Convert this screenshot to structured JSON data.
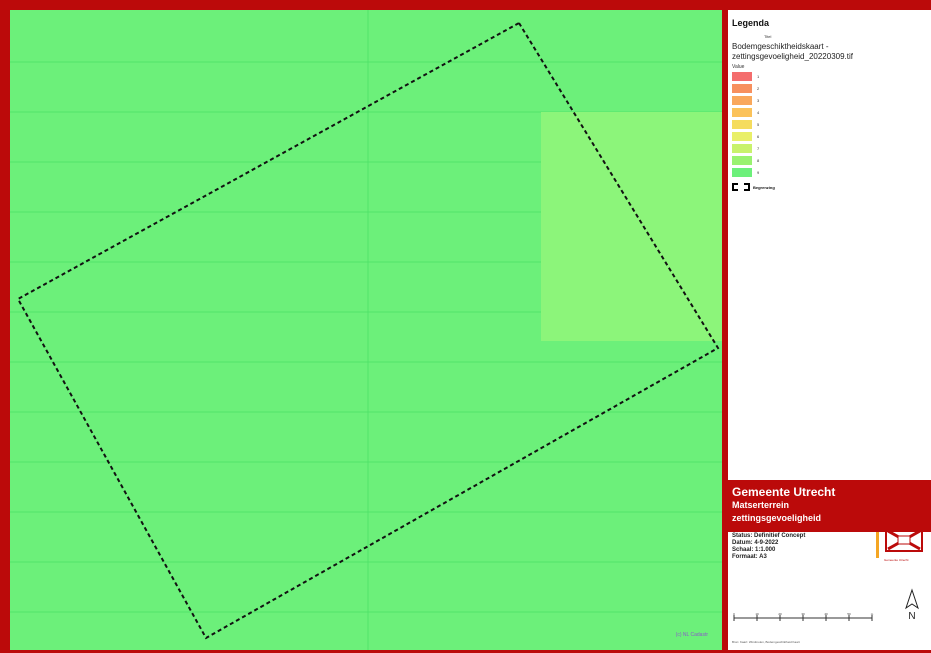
{
  "map": {
    "background_color": "#6cf07a",
    "highlight_color": "#8cf57a",
    "grid_color": "#52e36a",
    "copyright": "(c) NL Cadastr"
  },
  "legend": {
    "title": "Legenda",
    "layer_title": "Titel",
    "layer_name": "Bodemgeschiktheidskaart - zettingsgevoeligheid_20220309.tif",
    "value_label": "Value",
    "classes": [
      {
        "label": "1",
        "color": "#f46d6d"
      },
      {
        "label": "2",
        "color": "#f7905e"
      },
      {
        "label": "3",
        "color": "#f9a85c"
      },
      {
        "label": "4",
        "color": "#fbc25a"
      },
      {
        "label": "5",
        "color": "#f5dc5e"
      },
      {
        "label": "6",
        "color": "#e9ef68"
      },
      {
        "label": "7",
        "color": "#c8f26c"
      },
      {
        "label": "8",
        "color": "#99f270"
      },
      {
        "label": "9",
        "color": "#6cf07a"
      }
    ],
    "boundary_label": "Begrenzing"
  },
  "title_block": {
    "org": "Gemeente Utrecht",
    "project": "Matserterrein",
    "subject": "zettingsgevoeligheid",
    "status": "Status: Definitief Concept",
    "date": "Datum: 4-9-2022",
    "scale": "Schaal: 1:1.000",
    "format": "Formaat: A3",
    "logo_caption": "Gemeente Utrecht",
    "scale_ticks": [
      "0",
      "10",
      "20",
      "30",
      "40",
      "50",
      "m"
    ],
    "north": "N",
    "footer": "Bron: Kaart: Windmolen, Bodemgeschiktheid Kaart"
  },
  "colors": {
    "frame_red": "#bb0a0a",
    "accent_orange": "#f5a623"
  }
}
